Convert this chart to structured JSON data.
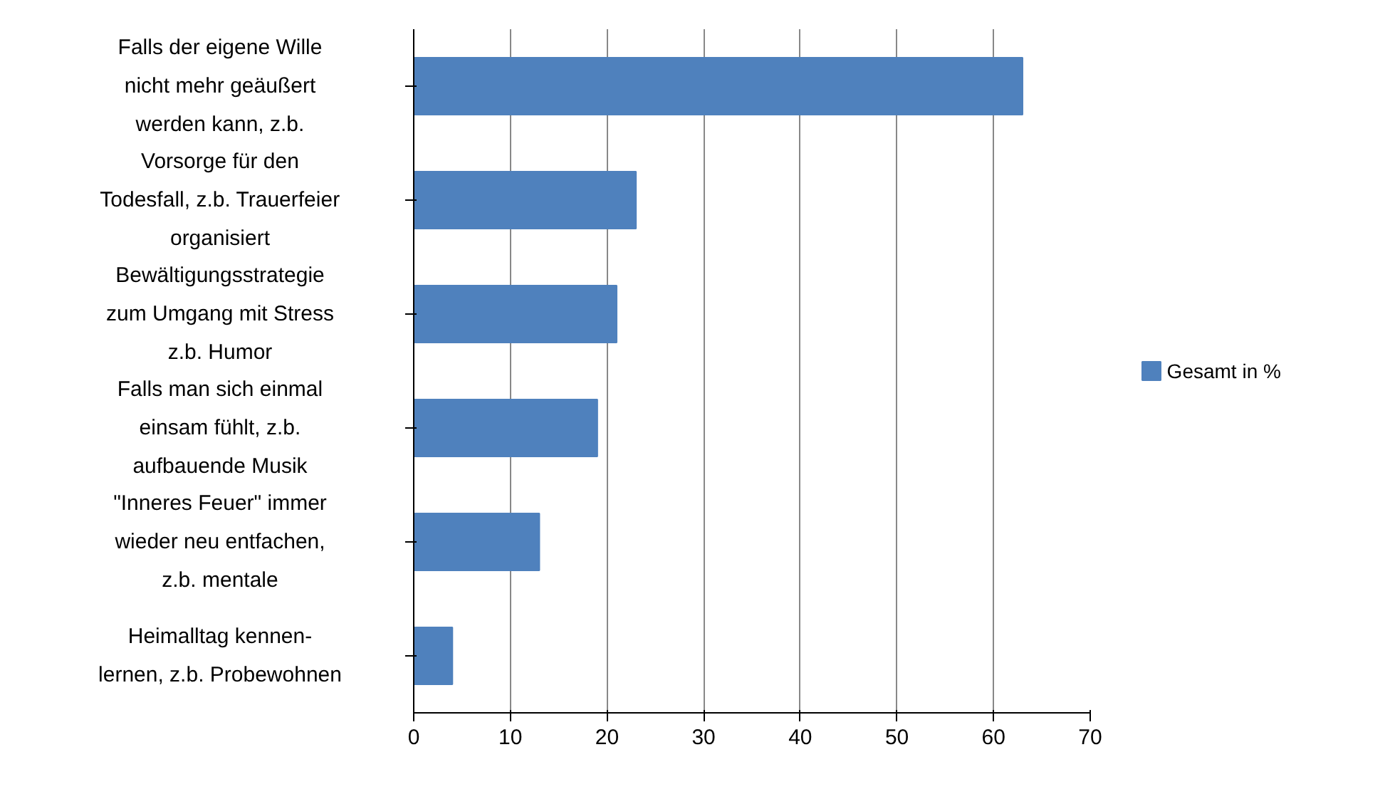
{
  "chart_data": {
    "type": "bar",
    "orientation": "horizontal",
    "categories": [
      "Falls der eigene Wille\nnicht mehr geäußert\nwerden kann, z.b.",
      "Vorsorge für den\nTodesfall, z.b. Trauerfeier\norganisiert",
      "Bewältigungsstrategie\nzum Umgang mit Stress\nz.b. Humor",
      "Falls man sich einmal\neinsam fühlt, z.b.\naufbauende Musik",
      "\"Inneres Feuer\" immer\nwieder neu entfachen,\nz.b. mentale",
      "Heimalltag kennen-\nlernen, z.b. Probewohnen"
    ],
    "series": [
      {
        "name": "Gesamt in %",
        "color": "#4f81bd",
        "values": [
          63,
          23,
          21,
          19,
          13,
          4
        ]
      }
    ],
    "xlim": [
      0,
      70
    ],
    "xticks": [
      0,
      10,
      20,
      30,
      40,
      50,
      60,
      70
    ],
    "grid": "x",
    "legend": "right"
  }
}
